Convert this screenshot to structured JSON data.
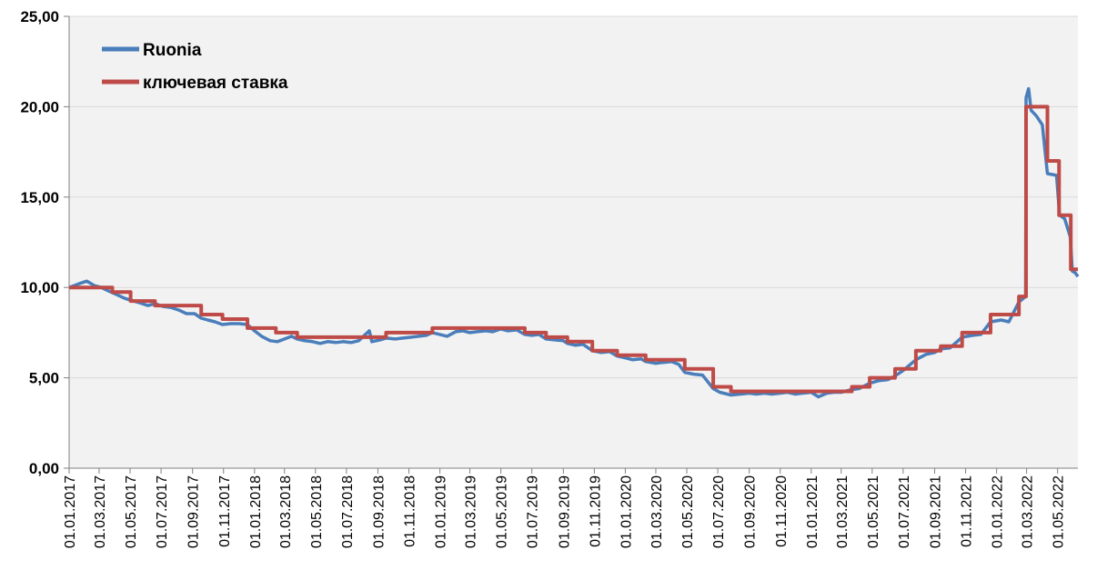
{
  "chart_data": {
    "type": "line",
    "title": "",
    "xlabel": "",
    "ylabel": "",
    "ylim": [
      0,
      25
    ],
    "yticks": [
      "0,00",
      "5,00",
      "10,00",
      "15,00",
      "20,00",
      "25,00"
    ],
    "ytick_values": [
      0,
      5,
      10,
      15,
      20,
      25
    ],
    "xlim": [
      "2017-01-01",
      "2022-06-10"
    ],
    "xticks": [
      "01.01.2017",
      "01.03.2017",
      "01.05.2017",
      "01.07.2017",
      "01.09.2017",
      "01.11.2017",
      "01.01.2018",
      "01.03.2018",
      "01.05.2018",
      "01.07.2018",
      "01.09.2018",
      "01.11.2018",
      "01.01.2019",
      "01.03.2019",
      "01.05.2019",
      "01.07.2019",
      "01.09.2019",
      "01.11.2019",
      "01.01.2020",
      "01.03.2020",
      "01.05.2020",
      "01.07.2020",
      "01.09.2020",
      "01.11.2020",
      "01.01.2021",
      "01.03.2021",
      "01.05.2021",
      "01.07.2021",
      "01.09.2021",
      "01.11.2021",
      "01.01.2022",
      "01.03.2022",
      "01.05.2022"
    ],
    "grid": "horizontal",
    "background": "#f2f2f2",
    "legend": "top-left",
    "series": [
      {
        "name": "Ruonia",
        "color": "#4a7ebb",
        "points": [
          [
            "2017-01-01",
            10.0
          ],
          [
            "2017-01-20",
            10.2
          ],
          [
            "2017-02-05",
            10.35
          ],
          [
            "2017-02-20",
            10.1
          ],
          [
            "2017-03-05",
            10.0
          ],
          [
            "2017-03-20",
            9.8
          ],
          [
            "2017-04-05",
            9.6
          ],
          [
            "2017-04-20",
            9.4
          ],
          [
            "2017-05-01",
            9.3
          ],
          [
            "2017-05-20",
            9.15
          ],
          [
            "2017-06-05",
            9.0
          ],
          [
            "2017-06-20",
            9.1
          ],
          [
            "2017-07-05",
            8.95
          ],
          [
            "2017-07-20",
            8.9
          ],
          [
            "2017-08-05",
            8.75
          ],
          [
            "2017-08-20",
            8.55
          ],
          [
            "2017-09-05",
            8.55
          ],
          [
            "2017-09-18",
            8.3
          ],
          [
            "2017-10-01",
            8.2
          ],
          [
            "2017-10-15",
            8.1
          ],
          [
            "2017-10-30",
            7.95
          ],
          [
            "2017-11-15",
            8.0
          ],
          [
            "2017-12-01",
            8.0
          ],
          [
            "2017-12-18",
            7.95
          ],
          [
            "2018-01-01",
            7.6
          ],
          [
            "2018-01-15",
            7.3
          ],
          [
            "2018-02-01",
            7.05
          ],
          [
            "2018-02-15",
            7.0
          ],
          [
            "2018-03-01",
            7.15
          ],
          [
            "2018-03-15",
            7.3
          ],
          [
            "2018-03-26",
            7.15
          ],
          [
            "2018-04-10",
            7.05
          ],
          [
            "2018-04-25",
            7.0
          ],
          [
            "2018-05-10",
            6.9
          ],
          [
            "2018-05-25",
            7.0
          ],
          [
            "2018-06-10",
            6.95
          ],
          [
            "2018-06-25",
            7.0
          ],
          [
            "2018-07-10",
            6.95
          ],
          [
            "2018-07-25",
            7.05
          ],
          [
            "2018-08-15",
            7.6
          ],
          [
            "2018-08-20",
            7.0
          ],
          [
            "2018-09-05",
            7.1
          ],
          [
            "2018-09-17",
            7.2
          ],
          [
            "2018-10-05",
            7.15
          ],
          [
            "2018-10-20",
            7.2
          ],
          [
            "2018-11-05",
            7.25
          ],
          [
            "2018-11-20",
            7.3
          ],
          [
            "2018-12-05",
            7.35
          ],
          [
            "2018-12-17",
            7.5
          ],
          [
            "2019-01-01",
            7.4
          ],
          [
            "2019-01-15",
            7.3
          ],
          [
            "2019-02-01",
            7.55
          ],
          [
            "2019-02-15",
            7.6
          ],
          [
            "2019-03-01",
            7.5
          ],
          [
            "2019-03-15",
            7.55
          ],
          [
            "2019-04-01",
            7.6
          ],
          [
            "2019-04-15",
            7.55
          ],
          [
            "2019-05-01",
            7.7
          ],
          [
            "2019-05-15",
            7.6
          ],
          [
            "2019-06-01",
            7.65
          ],
          [
            "2019-06-17",
            7.4
          ],
          [
            "2019-07-01",
            7.35
          ],
          [
            "2019-07-15",
            7.4
          ],
          [
            "2019-07-29",
            7.15
          ],
          [
            "2019-08-15",
            7.1
          ],
          [
            "2019-09-01",
            7.05
          ],
          [
            "2019-09-09",
            6.9
          ],
          [
            "2019-09-25",
            6.8
          ],
          [
            "2019-10-10",
            6.85
          ],
          [
            "2019-10-28",
            6.5
          ],
          [
            "2019-11-15",
            6.4
          ],
          [
            "2019-12-01",
            6.45
          ],
          [
            "2019-12-16",
            6.2
          ],
          [
            "2020-01-01",
            6.1
          ],
          [
            "2020-01-15",
            6.0
          ],
          [
            "2020-02-01",
            6.05
          ],
          [
            "2020-02-10",
            5.9
          ],
          [
            "2020-03-01",
            5.8
          ],
          [
            "2020-03-15",
            5.85
          ],
          [
            "2020-04-01",
            5.9
          ],
          [
            "2020-04-15",
            5.75
          ],
          [
            "2020-04-27",
            5.3
          ],
          [
            "2020-05-15",
            5.2
          ],
          [
            "2020-06-01",
            5.15
          ],
          [
            "2020-06-22",
            4.4
          ],
          [
            "2020-07-05",
            4.2
          ],
          [
            "2020-07-27",
            4.05
          ],
          [
            "2020-08-15",
            4.1
          ],
          [
            "2020-09-01",
            4.15
          ],
          [
            "2020-09-15",
            4.1
          ],
          [
            "2020-10-01",
            4.15
          ],
          [
            "2020-10-15",
            4.1
          ],
          [
            "2020-11-01",
            4.15
          ],
          [
            "2020-11-15",
            4.2
          ],
          [
            "2020-12-01",
            4.1
          ],
          [
            "2020-12-15",
            4.15
          ],
          [
            "2021-01-01",
            4.2
          ],
          [
            "2021-01-15",
            3.95
          ],
          [
            "2021-02-01",
            4.15
          ],
          [
            "2021-02-15",
            4.2
          ],
          [
            "2021-03-01",
            4.2
          ],
          [
            "2021-03-22",
            4.35
          ],
          [
            "2021-04-05",
            4.4
          ],
          [
            "2021-04-26",
            4.7
          ],
          [
            "2021-05-15",
            4.85
          ],
          [
            "2021-06-01",
            4.9
          ],
          [
            "2021-06-15",
            5.1
          ],
          [
            "2021-07-01",
            5.4
          ],
          [
            "2021-07-26",
            6.0
          ],
          [
            "2021-08-15",
            6.3
          ],
          [
            "2021-09-01",
            6.4
          ],
          [
            "2021-09-13",
            6.6
          ],
          [
            "2021-10-01",
            6.65
          ],
          [
            "2021-10-25",
            7.25
          ],
          [
            "2021-11-15",
            7.35
          ],
          [
            "2021-12-01",
            7.4
          ],
          [
            "2021-12-20",
            8.1
          ],
          [
            "2022-01-10",
            8.2
          ],
          [
            "2022-01-25",
            8.1
          ],
          [
            "2022-02-14",
            9.2
          ],
          [
            "2022-02-27",
            9.5
          ],
          [
            "2022-02-28",
            20.5
          ],
          [
            "2022-03-05",
            21.0
          ],
          [
            "2022-03-10",
            19.8
          ],
          [
            "2022-03-20",
            19.5
          ],
          [
            "2022-04-01",
            19.0
          ],
          [
            "2022-04-11",
            16.3
          ],
          [
            "2022-04-29",
            16.2
          ],
          [
            "2022-05-05",
            14.0
          ],
          [
            "2022-05-15",
            13.8
          ],
          [
            "2022-05-26",
            12.8
          ],
          [
            "2022-05-30",
            10.9
          ],
          [
            "2022-06-05",
            10.8
          ],
          [
            "2022-06-10",
            10.6
          ]
        ]
      },
      {
        "name": "ключевая ставка",
        "color": "#be4b48",
        "points": [
          [
            "2017-01-01",
            10.0
          ],
          [
            "2017-03-27",
            9.75
          ],
          [
            "2017-05-02",
            9.25
          ],
          [
            "2017-06-19",
            9.0
          ],
          [
            "2017-09-18",
            8.5
          ],
          [
            "2017-10-30",
            8.25
          ],
          [
            "2017-12-18",
            7.75
          ],
          [
            "2018-02-12",
            7.5
          ],
          [
            "2018-03-26",
            7.25
          ],
          [
            "2018-09-17",
            7.5
          ],
          [
            "2018-12-17",
            7.75
          ],
          [
            "2019-06-17",
            7.5
          ],
          [
            "2019-07-29",
            7.25
          ],
          [
            "2019-09-09",
            7.0
          ],
          [
            "2019-10-28",
            6.5
          ],
          [
            "2019-12-16",
            6.25
          ],
          [
            "2020-02-10",
            6.0
          ],
          [
            "2020-04-27",
            5.5
          ],
          [
            "2020-06-22",
            4.5
          ],
          [
            "2020-07-27",
            4.25
          ],
          [
            "2021-03-22",
            4.5
          ],
          [
            "2021-04-26",
            5.0
          ],
          [
            "2021-06-15",
            5.5
          ],
          [
            "2021-07-26",
            6.5
          ],
          [
            "2021-09-13",
            6.75
          ],
          [
            "2021-10-25",
            7.5
          ],
          [
            "2021-12-20",
            8.5
          ],
          [
            "2022-02-14",
            9.5
          ],
          [
            "2022-02-28",
            20.0
          ],
          [
            "2022-04-11",
            17.0
          ],
          [
            "2022-05-04",
            14.0
          ],
          [
            "2022-05-27",
            11.0
          ],
          [
            "2022-06-10",
            11.0
          ]
        ]
      }
    ]
  }
}
